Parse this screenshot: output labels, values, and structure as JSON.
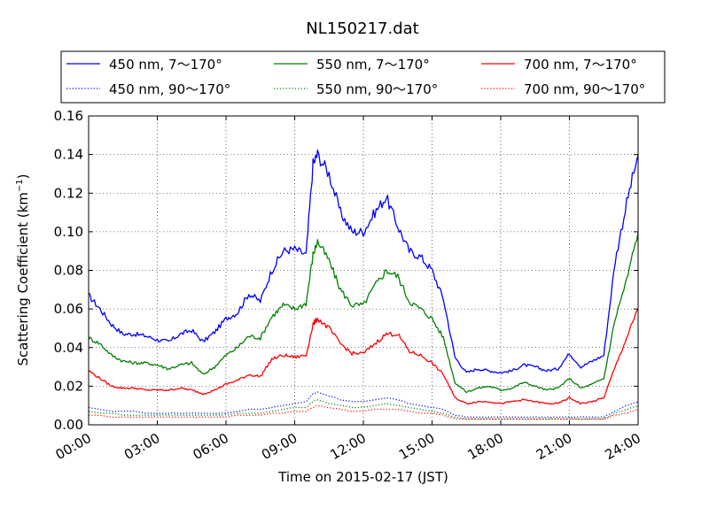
{
  "chart_data": {
    "type": "line",
    "title": "NL150217.dat",
    "xlabel": "Time on 2015-02-17 (JST)",
    "ylabel": "Scattering Coefficient (km",
    "ylabel_sup": "−1",
    "ylabel_end": ")",
    "xlim": [
      0,
      24
    ],
    "ylim": [
      0.0,
      0.16
    ],
    "grid": true,
    "legend_position": "top",
    "xticks": [
      0,
      3,
      6,
      9,
      12,
      15,
      18,
      21,
      24
    ],
    "xtick_labels": [
      "00:00",
      "03:00",
      "06:00",
      "09:00",
      "12:00",
      "15:00",
      "18:00",
      "21:00",
      "24:00"
    ],
    "yticks": [
      0.0,
      0.02,
      0.04,
      0.06,
      0.08,
      0.1,
      0.12,
      0.14,
      0.16
    ],
    "ytick_labels": [
      "0.00",
      "0.02",
      "0.04",
      "0.06",
      "0.08",
      "0.10",
      "0.12",
      "0.14",
      "0.16"
    ],
    "x": [
      0,
      0.5,
      1,
      1.5,
      2,
      2.5,
      3,
      3.5,
      4,
      4.5,
      5,
      5.5,
      6,
      6.5,
      7,
      7.5,
      8,
      8.5,
      9,
      9.5,
      9.8,
      10,
      10.5,
      11,
      11.5,
      12,
      12.5,
      13,
      13.5,
      14,
      14.5,
      15,
      15.5,
      16,
      16.5,
      17,
      17.5,
      18,
      18.5,
      19,
      19.5,
      20,
      20.5,
      21,
      21.5,
      22,
      22.5,
      23,
      23.5,
      24
    ],
    "series": [
      {
        "name": "450 nm, 7～170°",
        "color": "#0000ff",
        "style": "solid",
        "values": [
          0.067,
          0.06,
          0.052,
          0.047,
          0.047,
          0.046,
          0.044,
          0.043,
          0.047,
          0.049,
          0.043,
          0.048,
          0.055,
          0.058,
          0.068,
          0.064,
          0.08,
          0.09,
          0.091,
          0.088,
          0.135,
          0.14,
          0.13,
          0.11,
          0.1,
          0.1,
          0.11,
          0.118,
          0.103,
          0.09,
          0.087,
          0.08,
          0.065,
          0.035,
          0.027,
          0.029,
          0.028,
          0.027,
          0.028,
          0.031,
          0.03,
          0.028,
          0.029,
          0.037,
          0.03,
          0.033,
          0.036,
          0.085,
          0.115,
          0.14
        ]
      },
      {
        "name": "550 nm, 7～170°",
        "color": "#008000",
        "style": "solid",
        "values": [
          0.045,
          0.042,
          0.036,
          0.033,
          0.032,
          0.032,
          0.031,
          0.029,
          0.031,
          0.032,
          0.026,
          0.03,
          0.036,
          0.04,
          0.046,
          0.045,
          0.056,
          0.062,
          0.06,
          0.063,
          0.088,
          0.095,
          0.085,
          0.07,
          0.062,
          0.062,
          0.072,
          0.08,
          0.077,
          0.064,
          0.06,
          0.055,
          0.045,
          0.022,
          0.017,
          0.019,
          0.02,
          0.018,
          0.019,
          0.022,
          0.02,
          0.018,
          0.019,
          0.024,
          0.019,
          0.021,
          0.024,
          0.055,
          0.075,
          0.1
        ]
      },
      {
        "name": "700 nm, 7～170°",
        "color": "#ff0000",
        "style": "solid",
        "values": [
          0.028,
          0.024,
          0.02,
          0.019,
          0.019,
          0.018,
          0.018,
          0.018,
          0.019,
          0.018,
          0.016,
          0.018,
          0.021,
          0.023,
          0.026,
          0.025,
          0.034,
          0.036,
          0.035,
          0.036,
          0.052,
          0.055,
          0.05,
          0.042,
          0.037,
          0.037,
          0.042,
          0.047,
          0.047,
          0.038,
          0.036,
          0.032,
          0.026,
          0.014,
          0.011,
          0.012,
          0.012,
          0.011,
          0.012,
          0.013,
          0.012,
          0.011,
          0.011,
          0.014,
          0.011,
          0.012,
          0.014,
          0.03,
          0.045,
          0.06
        ]
      },
      {
        "name": "450 nm, 90～170°",
        "color": "#0000ff",
        "style": "dotted",
        "values": [
          0.009,
          0.008,
          0.007,
          0.007,
          0.007,
          0.006,
          0.006,
          0.006,
          0.006,
          0.006,
          0.006,
          0.006,
          0.006,
          0.007,
          0.008,
          0.008,
          0.009,
          0.01,
          0.011,
          0.012,
          0.016,
          0.017,
          0.015,
          0.013,
          0.012,
          0.012,
          0.013,
          0.014,
          0.013,
          0.011,
          0.01,
          0.009,
          0.008,
          0.005,
          0.004,
          0.004,
          0.004,
          0.004,
          0.004,
          0.004,
          0.004,
          0.004,
          0.004,
          0.004,
          0.004,
          0.004,
          0.004,
          0.007,
          0.01,
          0.012
        ]
      },
      {
        "name": "550 nm, 90～170°",
        "color": "#008000",
        "style": "dotted",
        "values": [
          0.007,
          0.006,
          0.006,
          0.005,
          0.005,
          0.005,
          0.005,
          0.005,
          0.005,
          0.005,
          0.005,
          0.005,
          0.005,
          0.006,
          0.006,
          0.006,
          0.007,
          0.008,
          0.009,
          0.009,
          0.012,
          0.013,
          0.011,
          0.01,
          0.009,
          0.009,
          0.01,
          0.011,
          0.01,
          0.009,
          0.008,
          0.007,
          0.006,
          0.004,
          0.003,
          0.003,
          0.003,
          0.003,
          0.003,
          0.003,
          0.003,
          0.003,
          0.003,
          0.003,
          0.003,
          0.003,
          0.003,
          0.006,
          0.008,
          0.01
        ]
      },
      {
        "name": "700 nm, 90～170°",
        "color": "#ff0000",
        "style": "dotted",
        "values": [
          0.005,
          0.005,
          0.004,
          0.004,
          0.004,
          0.004,
          0.004,
          0.004,
          0.004,
          0.004,
          0.004,
          0.004,
          0.004,
          0.005,
          0.005,
          0.005,
          0.006,
          0.006,
          0.007,
          0.007,
          0.009,
          0.01,
          0.009,
          0.008,
          0.007,
          0.007,
          0.008,
          0.008,
          0.008,
          0.007,
          0.006,
          0.006,
          0.005,
          0.003,
          0.003,
          0.003,
          0.003,
          0.003,
          0.003,
          0.003,
          0.003,
          0.003,
          0.003,
          0.003,
          0.003,
          0.003,
          0.003,
          0.005,
          0.006,
          0.008
        ]
      }
    ]
  }
}
